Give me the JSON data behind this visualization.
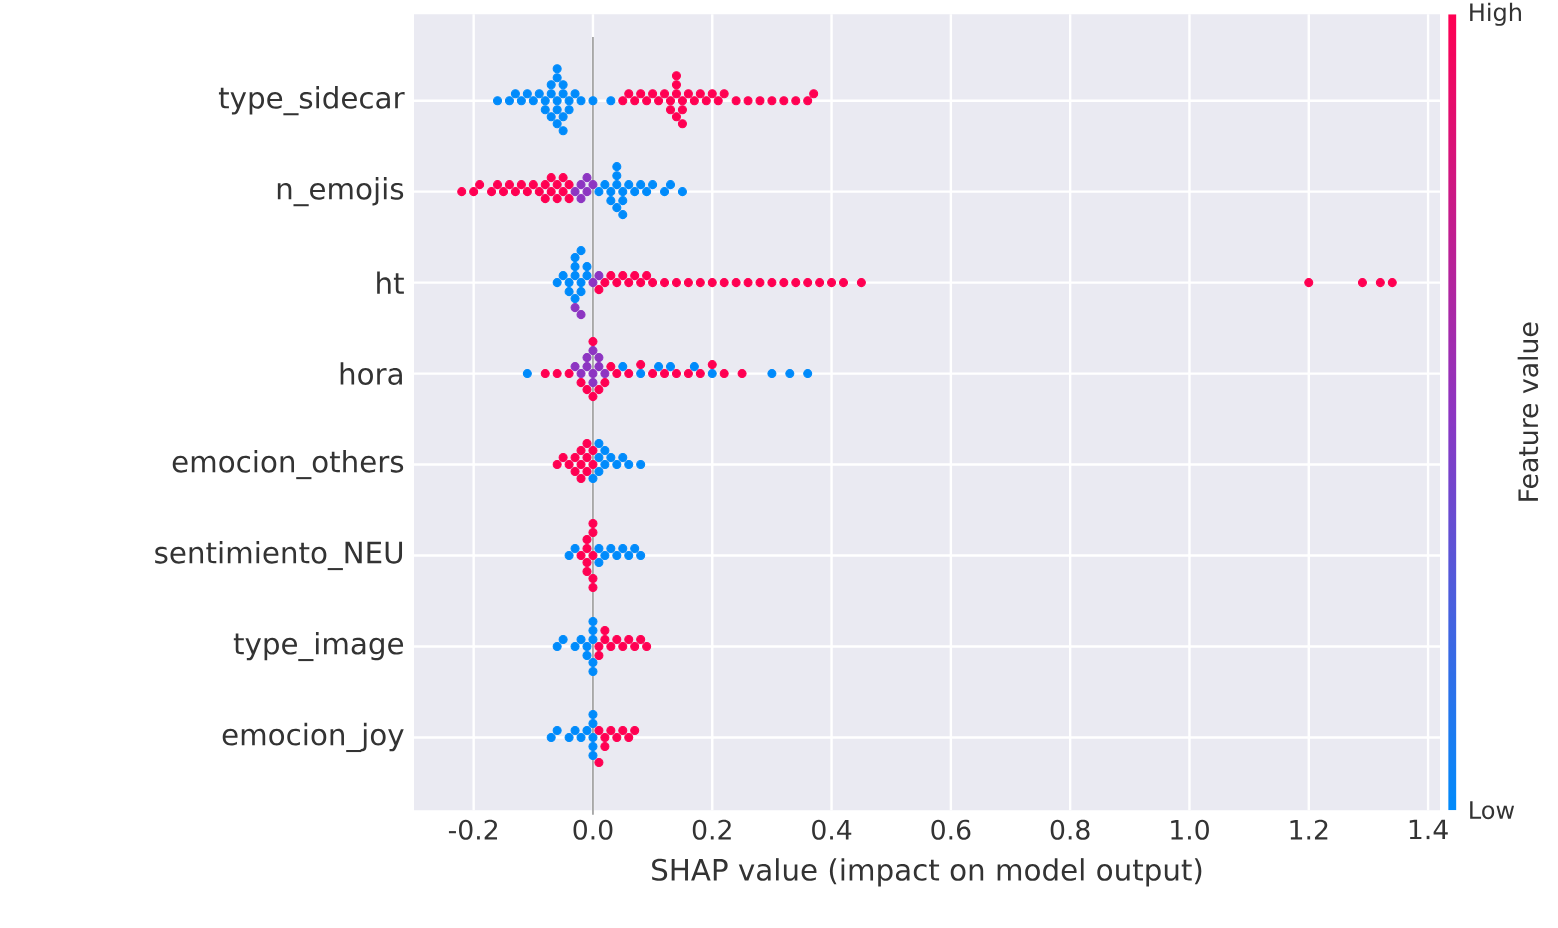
{
  "chart_data": {
    "type": "scatter",
    "orientation": "horizontal",
    "xlabel": "SHAP value (impact on model output)",
    "clabel": "Feature value",
    "annotations": [
      "High",
      "Low"
    ],
    "categories": [
      "type_sidecar",
      "n_emojis",
      "ht",
      "hora",
      "emocion_others",
      "sentimiento_NEU",
      "type_image",
      "emocion_joy"
    ],
    "xlim": [
      -0.3,
      1.42
    ],
    "xticks": [
      -0.2,
      {
        "value": 0,
        "label": "0.0"
      },
      0.2,
      0.4,
      0.6,
      0.8,
      {
        "value": 1,
        "label": "1.0"
      },
      1.2,
      1.4
    ],
    "grid": true,
    "marker": "circle",
    "ref_lines": [
      {
        "axis": "x",
        "value": 0,
        "color": "#999999"
      }
    ],
    "series": [
      {
        "x": [
          "type_sidecar",
          "type_sidecar",
          "type_sidecar",
          "type_sidecar",
          "type_sidecar",
          "type_sidecar",
          "type_sidecar",
          "type_sidecar",
          "type_sidecar",
          "type_sidecar",
          "type_sidecar",
          "type_sidecar",
          "type_sidecar",
          "type_sidecar",
          "type_sidecar",
          "type_sidecar",
          "type_sidecar",
          "type_sidecar",
          "type_sidecar",
          "type_sidecar",
          "type_sidecar",
          "type_sidecar",
          "type_sidecar",
          "type_sidecar",
          "type_sidecar",
          "type_sidecar",
          "type_sidecar",
          "type_sidecar",
          "type_sidecar",
          "type_sidecar",
          "type_sidecar",
          "type_sidecar",
          "type_sidecar",
          "type_sidecar",
          "type_sidecar",
          "type_sidecar",
          "type_sidecar",
          "type_sidecar",
          "type_sidecar",
          "type_sidecar",
          "type_sidecar",
          "type_sidecar",
          "type_sidecar",
          "type_sidecar",
          "type_sidecar",
          "type_sidecar",
          "type_sidecar",
          "type_sidecar",
          "type_sidecar",
          "type_sidecar",
          "type_sidecar",
          "type_sidecar",
          "type_sidecar",
          "type_sidecar",
          "type_sidecar",
          "type_sidecar",
          "type_sidecar",
          "type_sidecar",
          "type_sidecar"
        ],
        "values": [
          -0.16,
          -0.14,
          -0.13,
          -0.12,
          -0.11,
          -0.1,
          -0.09,
          -0.08,
          -0.08,
          -0.07,
          -0.07,
          -0.07,
          -0.06,
          -0.06,
          -0.06,
          -0.06,
          -0.06,
          -0.05,
          -0.05,
          -0.05,
          -0.05,
          -0.04,
          -0.04,
          -0.03,
          -0.02,
          0.0,
          0.03,
          0.05,
          0.06,
          0.07,
          0.08,
          0.09,
          0.1,
          0.11,
          0.12,
          0.13,
          0.13,
          0.14,
          0.14,
          0.14,
          0.14,
          0.15,
          0.15,
          0.15,
          0.16,
          0.17,
          0.18,
          0.19,
          0.2,
          0.21,
          0.22,
          0.24,
          0.26,
          0.28,
          0.3,
          0.32,
          0.34,
          0.36,
          0.37
        ],
        "colors": [
          "#008bfb",
          "#008bfb",
          "#008bfb",
          "#008bfb",
          "#008bfb",
          "#008bfb",
          "#008bfb",
          "#008bfb",
          "#008bfb",
          "#008bfb",
          "#008bfb",
          "#008bfb",
          "#008bfb",
          "#008bfb",
          "#008bfb",
          "#008bfb",
          "#008bfb",
          "#008bfb",
          "#008bfb",
          "#008bfb",
          "#008bfb",
          "#008bfb",
          "#008bfb",
          "#008bfb",
          "#008bfb",
          "#008bfb",
          "#008bfb",
          "#ff0052",
          "#ff0052",
          "#ff0052",
          "#ff0052",
          "#ff0052",
          "#ff0052",
          "#ff0052",
          "#ff0052",
          "#ff0052",
          "#ff0052",
          "#ff0052",
          "#ff0052",
          "#ff0052",
          "#ff0052",
          "#ff0052",
          "#ff0052",
          "#ff0052",
          "#ff0052",
          "#ff0052",
          "#ff0052",
          "#ff0052",
          "#ff0052",
          "#ff0052",
          "#ff0052",
          "#ff0052",
          "#ff0052",
          "#ff0052",
          "#ff0052",
          "#ff0052",
          "#ff0052",
          "#ff0052",
          "#ff0052"
        ]
      },
      {
        "x": [
          "n_emojis",
          "n_emojis",
          "n_emojis",
          "n_emojis",
          "n_emojis",
          "n_emojis",
          "n_emojis",
          "n_emojis",
          "n_emojis",
          "n_emojis",
          "n_emojis",
          "n_emojis",
          "n_emojis",
          "n_emojis",
          "n_emojis",
          "n_emojis",
          "n_emojis",
          "n_emojis",
          "n_emojis",
          "n_emojis",
          "n_emojis",
          "n_emojis",
          "n_emojis",
          "n_emojis",
          "n_emojis",
          "n_emojis",
          "n_emojis",
          "n_emojis",
          "n_emojis",
          "n_emojis",
          "n_emojis",
          "n_emojis",
          "n_emojis",
          "n_emojis",
          "n_emojis",
          "n_emojis",
          "n_emojis",
          "n_emojis",
          "n_emojis",
          "n_emojis",
          "n_emojis",
          "n_emojis",
          "n_emojis",
          "n_emojis",
          "n_emojis",
          "n_emojis",
          "n_emojis"
        ],
        "values": [
          -0.22,
          -0.2,
          -0.19,
          -0.17,
          -0.16,
          -0.15,
          -0.14,
          -0.13,
          -0.12,
          -0.11,
          -0.1,
          -0.09,
          -0.08,
          -0.08,
          -0.07,
          -0.07,
          -0.06,
          -0.06,
          -0.05,
          -0.05,
          -0.04,
          -0.04,
          -0.03,
          -0.02,
          -0.02,
          -0.01,
          -0.01,
          0.0,
          0.01,
          0.02,
          0.03,
          0.03,
          0.04,
          0.04,
          0.04,
          0.04,
          0.05,
          0.05,
          0.05,
          0.06,
          0.07,
          0.08,
          0.09,
          0.1,
          0.12,
          0.13,
          0.15
        ],
        "colors": [
          "#ff0052",
          "#ff0052",
          "#ff0052",
          "#ff0052",
          "#ff0052",
          "#ff0052",
          "#ff0052",
          "#ff0052",
          "#ff0052",
          "#ff0052",
          "#ff0052",
          "#ff0052",
          "#ff0052",
          "#ff0052",
          "#ff0052",
          "#ff0052",
          "#ff0052",
          "#ff0052",
          "#ff0052",
          "#ff0052",
          "#ff0052",
          "#ff0052",
          "#8d35c2",
          "#8d35c2",
          "#8d35c2",
          "#8d35c2",
          "#8d35c2",
          "#8d35c2",
          "#008bfb",
          "#008bfb",
          "#008bfb",
          "#008bfb",
          "#008bfb",
          "#008bfb",
          "#008bfb",
          "#008bfb",
          "#008bfb",
          "#008bfb",
          "#008bfb",
          "#008bfb",
          "#008bfb",
          "#008bfb",
          "#008bfb",
          "#008bfb",
          "#008bfb",
          "#008bfb",
          "#008bfb"
        ]
      },
      {
        "x": [
          "ht",
          "ht",
          "ht",
          "ht",
          "ht",
          "ht",
          "ht",
          "ht",
          "ht",
          "ht",
          "ht",
          "ht",
          "ht",
          "ht",
          "ht",
          "ht",
          "ht",
          "ht",
          "ht",
          "ht",
          "ht",
          "ht",
          "ht",
          "ht",
          "ht",
          "ht",
          "ht",
          "ht",
          "ht",
          "ht",
          "ht",
          "ht",
          "ht",
          "ht",
          "ht",
          "ht",
          "ht",
          "ht",
          "ht",
          "ht",
          "ht",
          "ht",
          "ht",
          "ht",
          "ht",
          "ht",
          "ht",
          "ht"
        ],
        "values": [
          -0.06,
          -0.05,
          -0.04,
          -0.04,
          -0.03,
          -0.03,
          -0.03,
          -0.03,
          -0.02,
          -0.02,
          -0.02,
          -0.01,
          -0.01,
          -0.03,
          -0.02,
          0.0,
          0.01,
          0.01,
          0.02,
          0.03,
          0.04,
          0.05,
          0.06,
          0.07,
          0.08,
          0.09,
          0.1,
          0.12,
          0.14,
          0.16,
          0.18,
          0.2,
          0.22,
          0.24,
          0.26,
          0.28,
          0.3,
          0.32,
          0.34,
          0.36,
          0.38,
          0.4,
          0.42,
          0.45,
          1.2,
          1.29,
          1.32,
          1.34
        ],
        "colors": [
          "#008bfb",
          "#008bfb",
          "#008bfb",
          "#008bfb",
          "#008bfb",
          "#008bfb",
          "#008bfb",
          "#008bfb",
          "#008bfb",
          "#008bfb",
          "#008bfb",
          "#008bfb",
          "#008bfb",
          "#8d35c2",
          "#8d35c2",
          "#8d35c2",
          "#8d35c2",
          "#ff0052",
          "#ff0052",
          "#ff0052",
          "#ff0052",
          "#ff0052",
          "#ff0052",
          "#ff0052",
          "#ff0052",
          "#ff0052",
          "#ff0052",
          "#ff0052",
          "#ff0052",
          "#ff0052",
          "#ff0052",
          "#ff0052",
          "#ff0052",
          "#ff0052",
          "#ff0052",
          "#ff0052",
          "#ff0052",
          "#ff0052",
          "#ff0052",
          "#ff0052",
          "#ff0052",
          "#ff0052",
          "#ff0052",
          "#ff0052",
          "#ff0052",
          "#ff0052",
          "#ff0052",
          "#ff0052"
        ]
      },
      {
        "x": [
          "hora",
          "hora",
          "hora",
          "hora",
          "hora",
          "hora",
          "hora",
          "hora",
          "hora",
          "hora",
          "hora",
          "hora",
          "hora",
          "hora",
          "hora",
          "hora",
          "hora",
          "hora",
          "hora",
          "hora",
          "hora",
          "hora",
          "hora",
          "hora",
          "hora",
          "hora",
          "hora",
          "hora",
          "hora",
          "hora",
          "hora",
          "hora",
          "hora",
          "hora",
          "hora",
          "hora",
          "hora",
          "hora",
          "hora",
          "hora",
          "hora"
        ],
        "values": [
          -0.11,
          0.05,
          0.08,
          0.11,
          0.13,
          0.17,
          0.2,
          0.3,
          0.33,
          0.36,
          -0.03,
          -0.02,
          -0.01,
          -0.01,
          0.0,
          0.0,
          0.0,
          0.01,
          0.01,
          0.02,
          -0.08,
          -0.06,
          -0.04,
          -0.02,
          -0.01,
          0.0,
          0.0,
          0.01,
          0.02,
          0.03,
          0.04,
          0.06,
          0.08,
          0.1,
          0.12,
          0.14,
          0.16,
          0.18,
          0.2,
          0.22,
          0.25
        ],
        "colors": [
          "#008bfb",
          "#008bfb",
          "#008bfb",
          "#008bfb",
          "#008bfb",
          "#008bfb",
          "#008bfb",
          "#008bfb",
          "#008bfb",
          "#008bfb",
          "#8d35c2",
          "#8d35c2",
          "#8d35c2",
          "#8d35c2",
          "#8d35c2",
          "#8d35c2",
          "#8d35c2",
          "#8d35c2",
          "#8d35c2",
          "#8d35c2",
          "#ff0052",
          "#ff0052",
          "#ff0052",
          "#ff0052",
          "#ff0052",
          "#ff0052",
          "#ff0052",
          "#ff0052",
          "#ff0052",
          "#ff0052",
          "#ff0052",
          "#ff0052",
          "#ff0052",
          "#ff0052",
          "#ff0052",
          "#ff0052",
          "#ff0052",
          "#ff0052",
          "#ff0052",
          "#ff0052",
          "#ff0052"
        ]
      },
      {
        "x": [
          "emocion_others",
          "emocion_others",
          "emocion_others",
          "emocion_others",
          "emocion_others",
          "emocion_others",
          "emocion_others",
          "emocion_others",
          "emocion_others",
          "emocion_others",
          "emocion_others",
          "emocion_others",
          "emocion_others",
          "emocion_others",
          "emocion_others",
          "emocion_others",
          "emocion_others",
          "emocion_others",
          "emocion_others",
          "emocion_others",
          "emocion_others",
          "emocion_others",
          "emocion_others",
          "emocion_others"
        ],
        "values": [
          -0.06,
          -0.05,
          -0.04,
          -0.03,
          -0.03,
          -0.02,
          -0.02,
          -0.02,
          -0.01,
          -0.01,
          -0.01,
          0.0,
          0.0,
          0.0,
          0.01,
          0.01,
          0.01,
          0.02,
          0.02,
          0.03,
          0.04,
          0.05,
          0.06,
          0.08
        ],
        "colors": [
          "#ff0052",
          "#ff0052",
          "#ff0052",
          "#ff0052",
          "#ff0052",
          "#ff0052",
          "#ff0052",
          "#ff0052",
          "#ff0052",
          "#ff0052",
          "#ff0052",
          "#ff0052",
          "#ff0052",
          "#008bfb",
          "#008bfb",
          "#008bfb",
          "#008bfb",
          "#008bfb",
          "#008bfb",
          "#008bfb",
          "#008bfb",
          "#008bfb",
          "#008bfb",
          "#008bfb"
        ]
      },
      {
        "x": [
          "sentimiento_NEU",
          "sentimiento_NEU",
          "sentimiento_NEU",
          "sentimiento_NEU",
          "sentimiento_NEU",
          "sentimiento_NEU",
          "sentimiento_NEU",
          "sentimiento_NEU",
          "sentimiento_NEU",
          "sentimiento_NEU",
          "sentimiento_NEU",
          "sentimiento_NEU",
          "sentimiento_NEU",
          "sentimiento_NEU",
          "sentimiento_NEU",
          "sentimiento_NEU",
          "sentimiento_NEU",
          "sentimiento_NEU",
          "sentimiento_NEU",
          "sentimiento_NEU",
          "sentimiento_NEU"
        ],
        "values": [
          -0.04,
          -0.03,
          -0.02,
          -0.01,
          -0.01,
          -0.01,
          -0.01,
          0.0,
          0.0,
          0.0,
          0.0,
          0.0,
          0.01,
          0.01,
          0.02,
          0.03,
          0.04,
          0.05,
          0.06,
          0.07,
          0.08
        ],
        "colors": [
          "#008bfb",
          "#008bfb",
          "#ff0052",
          "#ff0052",
          "#ff0052",
          "#ff0052",
          "#ff0052",
          "#ff0052",
          "#ff0052",
          "#ff0052",
          "#ff0052",
          "#ff0052",
          "#008bfb",
          "#008bfb",
          "#008bfb",
          "#008bfb",
          "#008bfb",
          "#008bfb",
          "#008bfb",
          "#008bfb",
          "#008bfb"
        ]
      },
      {
        "x": [
          "type_image",
          "type_image",
          "type_image",
          "type_image",
          "type_image",
          "type_image",
          "type_image",
          "type_image",
          "type_image",
          "type_image",
          "type_image",
          "type_image",
          "type_image",
          "type_image",
          "type_image",
          "type_image",
          "type_image",
          "type_image",
          "type_image",
          "type_image",
          "type_image",
          "type_image"
        ],
        "values": [
          -0.06,
          -0.05,
          -0.03,
          -0.02,
          -0.01,
          -0.01,
          0.0,
          0.0,
          0.0,
          0.0,
          0.0,
          0.01,
          0.01,
          0.02,
          0.02,
          0.03,
          0.04,
          0.05,
          0.06,
          0.07,
          0.08,
          0.09
        ],
        "colors": [
          "#008bfb",
          "#008bfb",
          "#008bfb",
          "#008bfb",
          "#008bfb",
          "#008bfb",
          "#008bfb",
          "#008bfb",
          "#008bfb",
          "#008bfb",
          "#008bfb",
          "#ff0052",
          "#ff0052",
          "#ff0052",
          "#ff0052",
          "#ff0052",
          "#ff0052",
          "#ff0052",
          "#ff0052",
          "#ff0052",
          "#ff0052",
          "#ff0052"
        ]
      },
      {
        "x": [
          "emocion_joy",
          "emocion_joy",
          "emocion_joy",
          "emocion_joy",
          "emocion_joy",
          "emocion_joy",
          "emocion_joy",
          "emocion_joy",
          "emocion_joy",
          "emocion_joy",
          "emocion_joy",
          "emocion_joy",
          "emocion_joy",
          "emocion_joy",
          "emocion_joy",
          "emocion_joy",
          "emocion_joy",
          "emocion_joy",
          "emocion_joy",
          "emocion_joy"
        ],
        "values": [
          -0.07,
          -0.06,
          -0.04,
          -0.03,
          -0.02,
          -0.01,
          0.0,
          0.0,
          0.0,
          0.0,
          0.0,
          0.01,
          0.01,
          0.02,
          0.02,
          0.03,
          0.04,
          0.05,
          0.06,
          0.07
        ],
        "colors": [
          "#008bfb",
          "#008bfb",
          "#008bfb",
          "#008bfb",
          "#008bfb",
          "#008bfb",
          "#008bfb",
          "#008bfb",
          "#008bfb",
          "#008bfb",
          "#008bfb",
          "#ff0052",
          "#ff0052",
          "#ff0052",
          "#ff0052",
          "#ff0052",
          "#ff0052",
          "#ff0052",
          "#ff0052",
          "#ff0052"
        ]
      }
    ]
  }
}
